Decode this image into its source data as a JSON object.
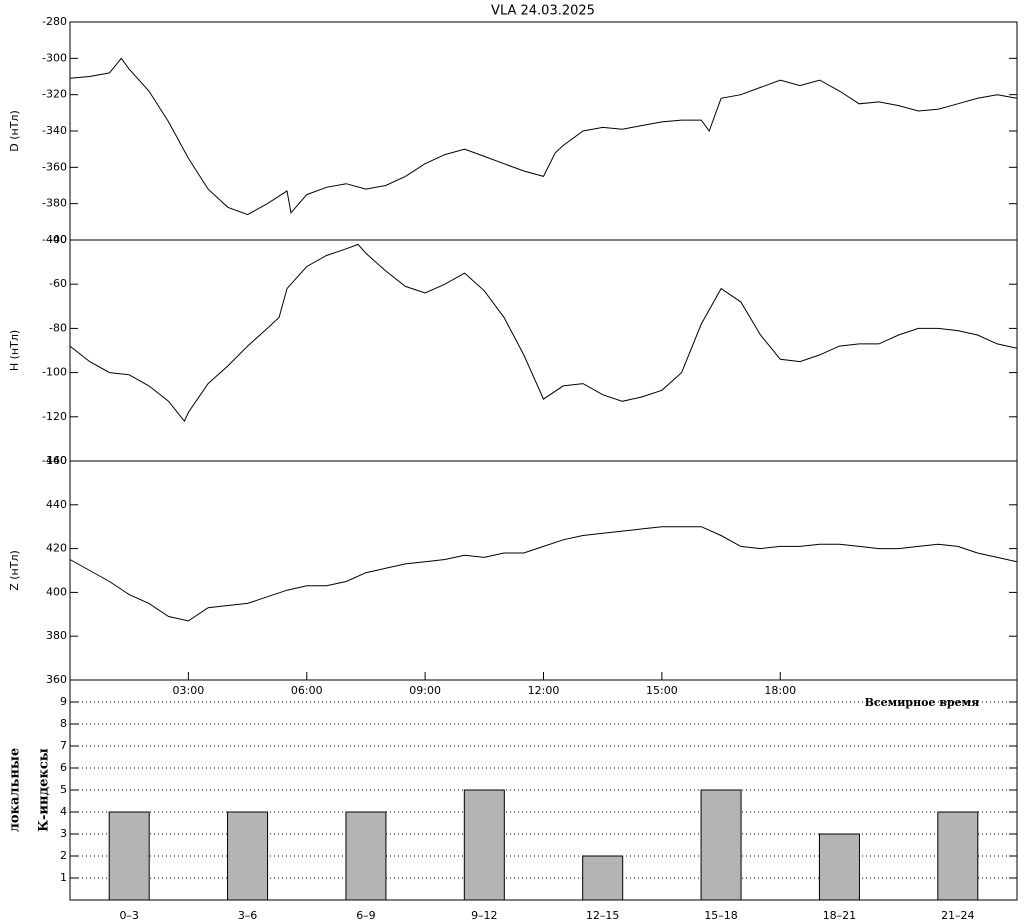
{
  "chart_data": [
    {
      "type": "line",
      "title": "VLA   24.03.2025",
      "ylabel": "D (нТл)",
      "xlim": [
        0,
        24
      ],
      "ylim": [
        -400,
        -280
      ],
      "yticks": [
        -400,
        -380,
        -360,
        -340,
        -320,
        -300,
        -280
      ],
      "color": "#000000",
      "x": [
        0,
        0.5,
        1,
        1.3,
        1.5,
        2,
        2.5,
        3,
        3.5,
        4,
        4.5,
        5,
        5.5,
        5.6,
        6,
        6.5,
        7,
        7.5,
        8,
        8.5,
        9,
        9.5,
        10,
        10.5,
        11,
        11.5,
        12,
        12.3,
        12.5,
        13,
        13.5,
        14,
        14.5,
        15,
        15.5,
        16,
        16.2,
        16.5,
        17,
        17.5,
        18,
        18.5,
        19,
        19.5,
        20,
        20.5,
        21,
        21.5,
        22,
        22.5,
        23,
        23.5,
        24
      ],
      "values": [
        -311,
        -310,
        -308,
        -300,
        -306,
        -318,
        -335,
        -355,
        -372,
        -382,
        -386,
        -380,
        -373,
        -385,
        -375,
        -371,
        -369,
        -372,
        -370,
        -365,
        -358,
        -353,
        -350,
        -354,
        -358,
        -362,
        -365,
        -352,
        -348,
        -340,
        -338,
        -339,
        -337,
        -335,
        -334,
        -334,
        -340,
        -322,
        -320,
        -316,
        -312,
        -315,
        -312,
        -318,
        -325,
        -324,
        -326,
        -329,
        -328,
        -325,
        -322,
        -320,
        -322
      ]
    },
    {
      "type": "line",
      "ylabel": "H (нТл)",
      "xlim": [
        0,
        24
      ],
      "ylim": [
        -140,
        -40
      ],
      "yticks": [
        -140,
        -120,
        -100,
        -80,
        -60,
        -40
      ],
      "color": "#000000",
      "x": [
        0,
        0.5,
        1,
        1.5,
        2,
        2.5,
        2.9,
        3,
        3.5,
        4,
        4.5,
        5,
        5.3,
        5.5,
        6,
        6.5,
        7,
        7.3,
        7.5,
        8,
        8.5,
        9,
        9.5,
        10,
        10.5,
        11,
        11.5,
        12,
        12.5,
        13,
        13.5,
        14,
        14.5,
        15,
        15.5,
        16,
        16.5,
        17,
        17.5,
        18,
        18.5,
        19,
        19.5,
        20,
        20.5,
        21,
        21.5,
        22,
        22.5,
        23,
        23.5,
        24
      ],
      "values": [
        -88,
        -95,
        -100,
        -101,
        -106,
        -113,
        -122,
        -118,
        -105,
        -97,
        -88,
        -80,
        -75,
        -62,
        -52,
        -47,
        -44,
        -42,
        -46,
        -54,
        -61,
        -64,
        -60,
        -55,
        -63,
        -75,
        -92,
        -112,
        -106,
        -105,
        -110,
        -113,
        -111,
        -108,
        -100,
        -78,
        -62,
        -68,
        -83,
        -94,
        -95,
        -92,
        -88,
        -87,
        -87,
        -83,
        -80,
        -80,
        -81,
        -83,
        -87,
        -89
      ]
    },
    {
      "type": "line",
      "ylabel": "Z (нТл)",
      "x_label": "Всемирное время",
      "xlim": [
        0,
        24
      ],
      "ylim": [
        360,
        460
      ],
      "yticks": [
        360,
        380,
        400,
        420,
        440,
        460
      ],
      "color": "#000000",
      "xticks": [
        {
          "value": 3,
          "label": "03:00"
        },
        {
          "value": 6,
          "label": "06:00"
        },
        {
          "value": 9,
          "label": "09:00"
        },
        {
          "value": 12,
          "label": "12:00"
        },
        {
          "value": 15,
          "label": "15:00"
        },
        {
          "value": 18,
          "label": "18:00"
        }
      ],
      "x": [
        0,
        0.5,
        1,
        1.5,
        2,
        2.5,
        3,
        3.5,
        4,
        4.5,
        5,
        5.5,
        6,
        6.5,
        7,
        7.5,
        8,
        8.5,
        9,
        9.5,
        10,
        10.5,
        11,
        11.5,
        12,
        12.5,
        13,
        13.5,
        14,
        14.5,
        15,
        15.5,
        16,
        16.5,
        17,
        17.5,
        18,
        18.5,
        19,
        19.5,
        20,
        20.5,
        21,
        21.5,
        22,
        22.5,
        23,
        23.5,
        24
      ],
      "values": [
        415,
        410,
        405,
        399,
        395,
        389,
        387,
        393,
        394,
        395,
        398,
        401,
        403,
        403,
        405,
        409,
        411,
        413,
        414,
        415,
        417,
        416,
        418,
        418,
        421,
        424,
        426,
        427,
        428,
        429,
        430,
        430,
        430,
        426,
        421,
        420,
        421,
        421,
        422,
        422,
        421,
        420,
        420,
        421,
        422,
        421,
        418,
        416,
        414
      ]
    },
    {
      "type": "bar",
      "ylabel": [
        "локальные",
        "К-индексы"
      ],
      "ylim": [
        0,
        10
      ],
      "yticks": [
        1,
        2,
        3,
        4,
        5,
        6,
        7,
        8,
        9
      ],
      "grid": true,
      "color": "#b4b4b4",
      "categories": [
        "0–3",
        "3–6",
        "6–9",
        "9–12",
        "12–15",
        "15–18",
        "18–21",
        "21–24"
      ],
      "values": [
        4,
        4,
        4,
        5,
        2,
        5,
        3,
        4
      ]
    }
  ]
}
